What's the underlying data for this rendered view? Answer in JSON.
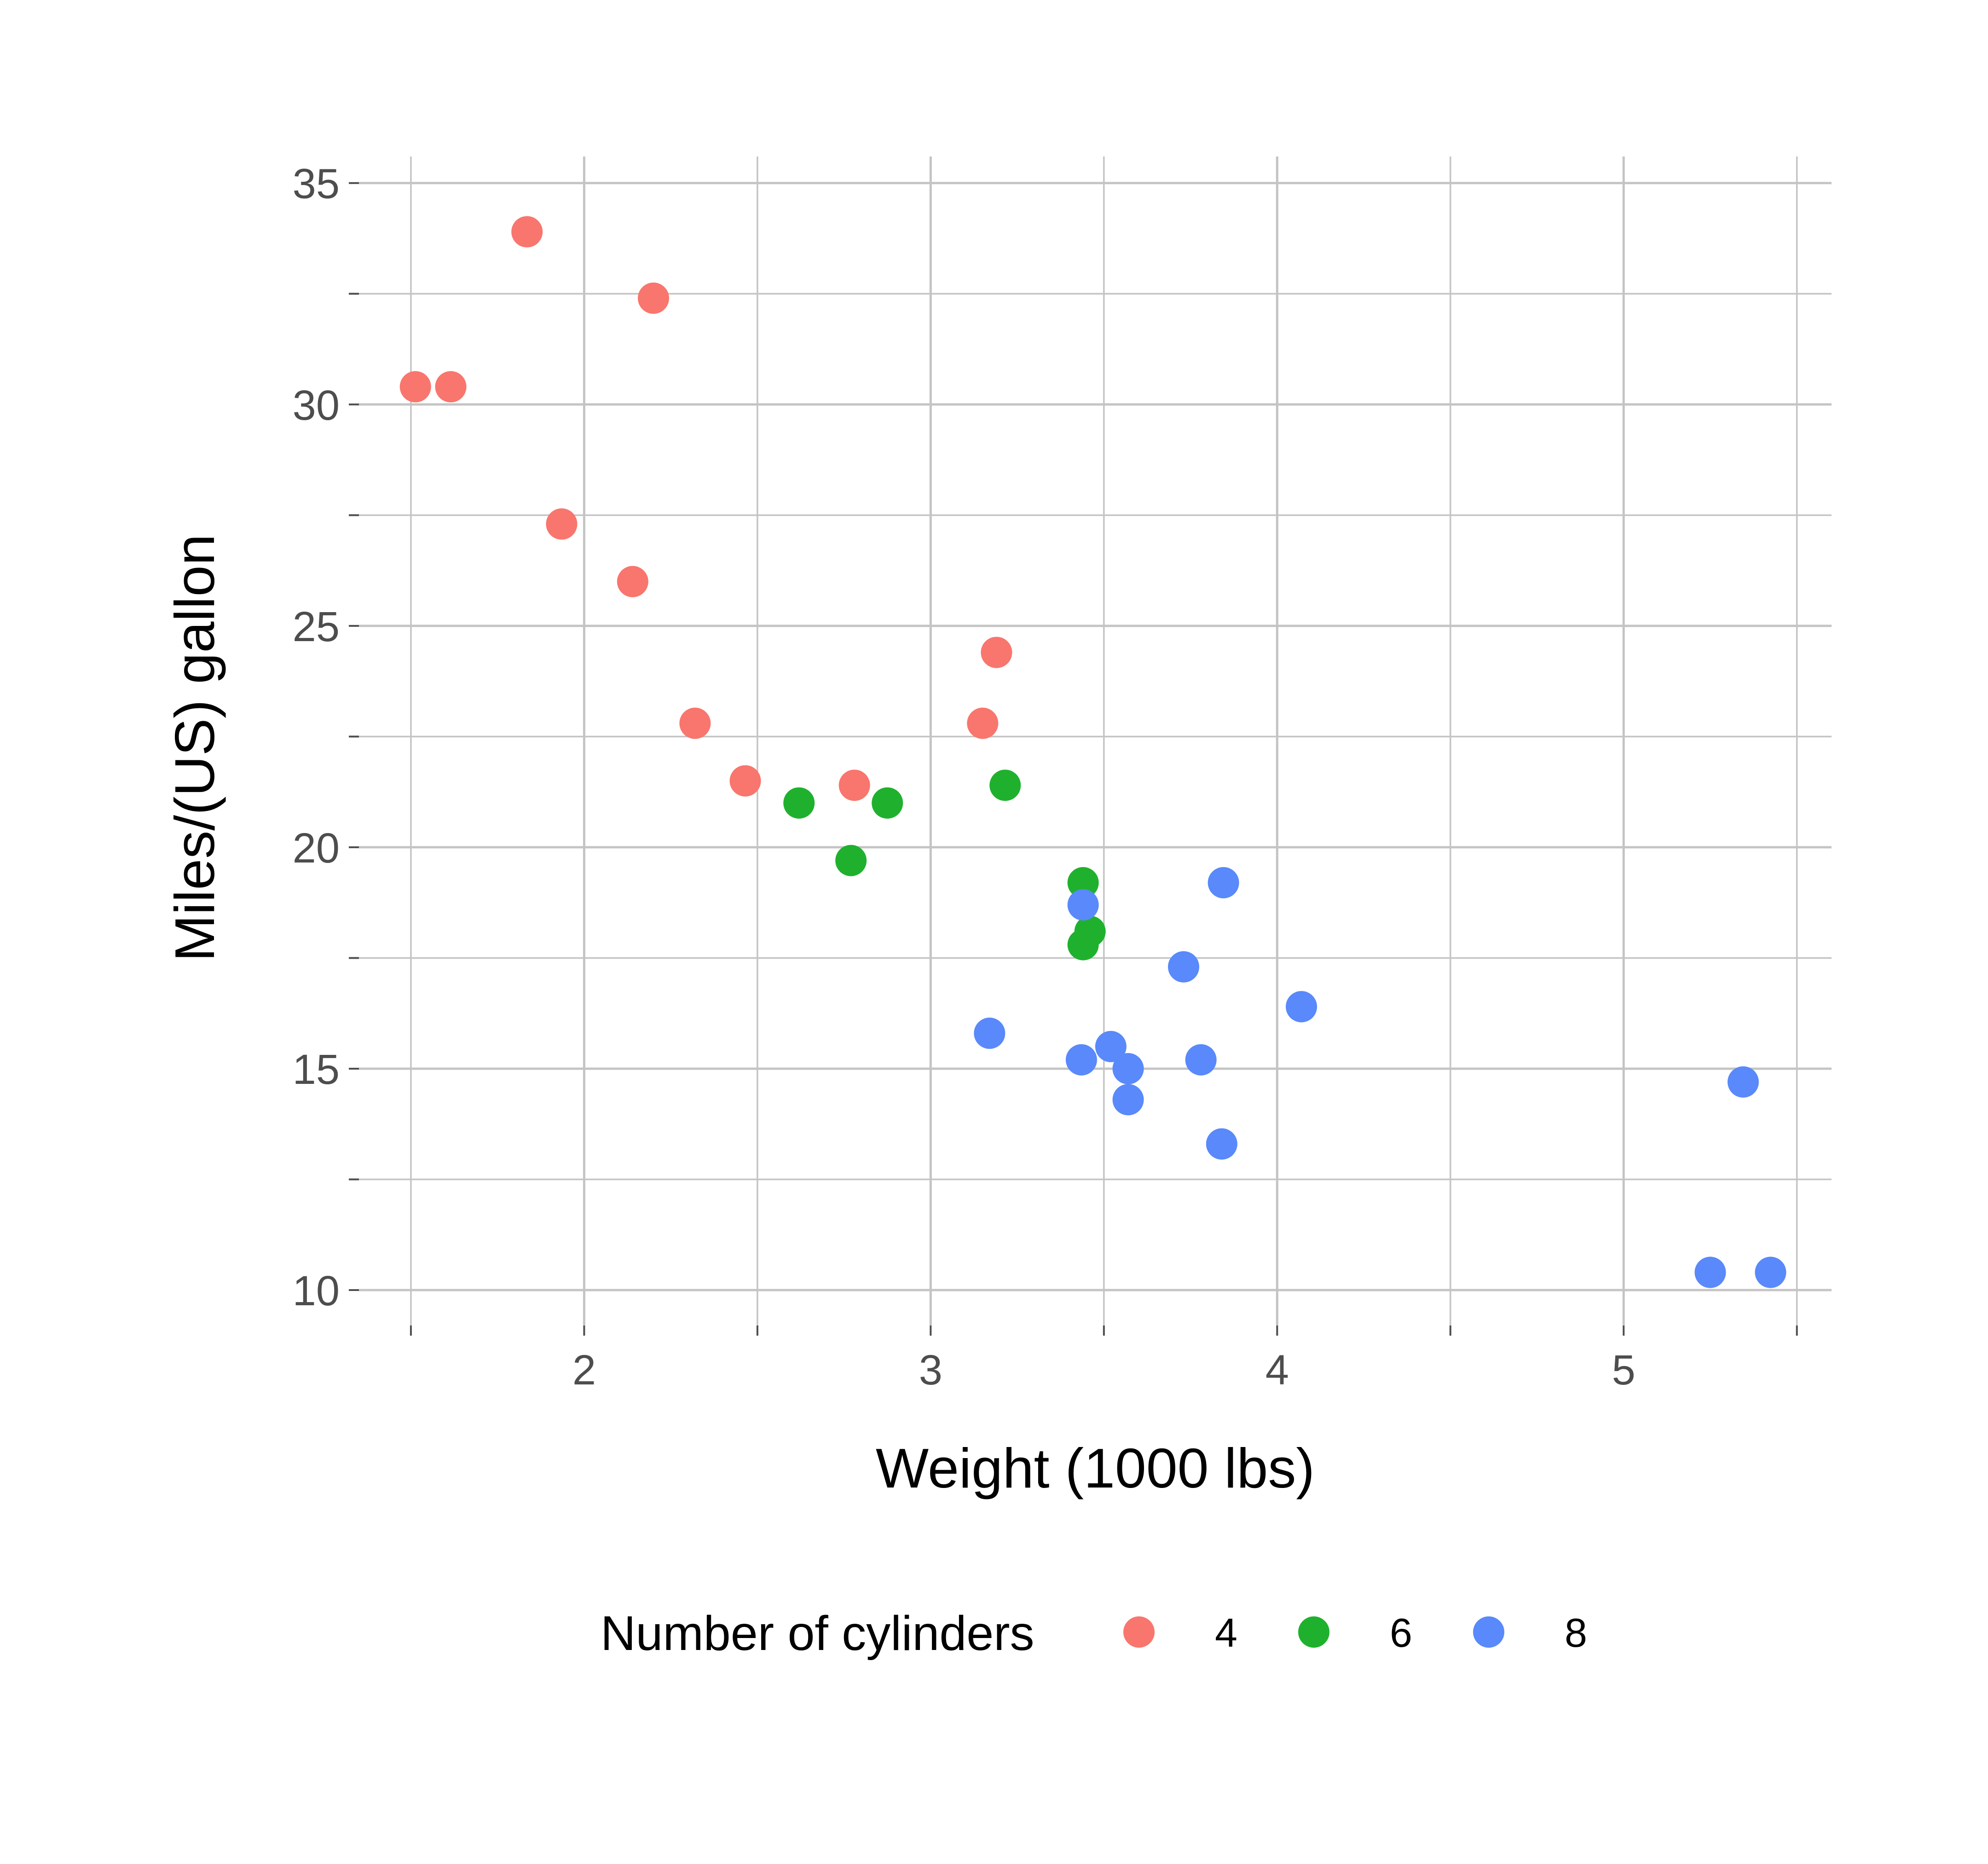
{
  "chart_data": {
    "type": "scatter",
    "title": "",
    "xlabel": "Weight (1000 lbs)",
    "ylabel": "Miles/(US) gallon",
    "xlim": [
      1.35,
      5.6
    ],
    "ylim": [
      9.2,
      35.6
    ],
    "x_major_ticks": [
      2,
      3,
      4,
      5
    ],
    "x_minor_ticks": [
      1.5,
      2.5,
      3.5,
      4.5,
      5.5
    ],
    "y_major_ticks": [
      10,
      15,
      20,
      25,
      30,
      35
    ],
    "y_minor_ticks": [
      12.5,
      17.5,
      22.5,
      27.5,
      32.5
    ],
    "x_tick_labels": [
      "2",
      "3",
      "4",
      "5"
    ],
    "y_tick_labels": [
      "10",
      "15",
      "20",
      "25",
      "30",
      "35"
    ],
    "grid": true,
    "legend": {
      "title": "Number of cylinders",
      "position": "bottom"
    },
    "series": [
      {
        "name": "4",
        "color": "#F8766D",
        "points": [
          {
            "x": 2.32,
            "y": 22.8
          },
          {
            "x": 3.19,
            "y": 24.4
          },
          {
            "x": 3.15,
            "y": 22.8
          },
          {
            "x": 2.2,
            "y": 32.4
          },
          {
            "x": 1.615,
            "y": 30.4
          },
          {
            "x": 1.835,
            "y": 33.9
          },
          {
            "x": 2.465,
            "y": 21.5
          },
          {
            "x": 1.935,
            "y": 27.3
          },
          {
            "x": 2.14,
            "y": 26.0
          },
          {
            "x": 1.513,
            "y": 30.4
          },
          {
            "x": 2.78,
            "y": 21.4
          }
        ]
      },
      {
        "name": "6",
        "color": "#1FB12E",
        "points": [
          {
            "x": 2.62,
            "y": 21.0
          },
          {
            "x": 2.875,
            "y": 21.0
          },
          {
            "x": 3.215,
            "y": 21.4
          },
          {
            "x": 3.44,
            "y": 17.8
          },
          {
            "x": 3.44,
            "y": 19.2
          },
          {
            "x": 3.46,
            "y": 18.1
          },
          {
            "x": 2.77,
            "y": 19.7
          }
        ]
      },
      {
        "name": "8",
        "color": "#5989FA",
        "points": [
          {
            "x": 3.44,
            "y": 18.7
          },
          {
            "x": 3.57,
            "y": 14.3
          },
          {
            "x": 4.07,
            "y": 16.4
          },
          {
            "x": 3.73,
            "y": 17.3
          },
          {
            "x": 3.78,
            "y": 15.2
          },
          {
            "x": 5.25,
            "y": 10.4
          },
          {
            "x": 5.424,
            "y": 10.4
          },
          {
            "x": 5.345,
            "y": 14.7
          },
          {
            "x": 3.52,
            "y": 15.5
          },
          {
            "x": 3.435,
            "y": 15.2
          },
          {
            "x": 3.84,
            "y": 13.3
          },
          {
            "x": 3.845,
            "y": 19.2
          },
          {
            "x": 3.17,
            "y": 15.8
          },
          {
            "x": 3.57,
            "y": 15.0
          }
        ]
      }
    ]
  }
}
